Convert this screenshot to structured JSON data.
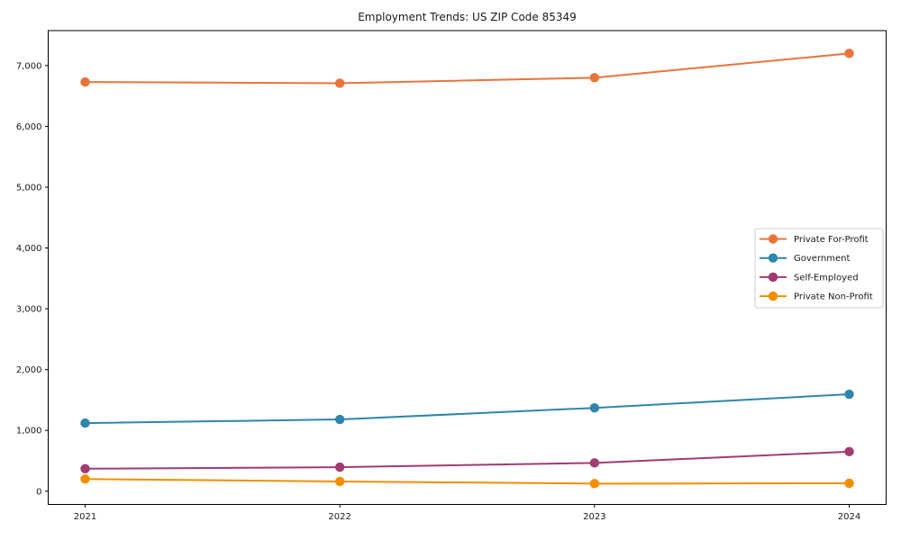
{
  "chart_data": {
    "type": "line",
    "title": "Employment Trends: US ZIP Code 85349",
    "xlabel": "",
    "ylabel": "",
    "x": [
      2021,
      2022,
      2023,
      2024
    ],
    "x_tick_labels": [
      "2021",
      "2022",
      "2023",
      "2024"
    ],
    "y_ticks": [
      0,
      1000,
      2000,
      3000,
      4000,
      5000,
      6000,
      7000
    ],
    "y_tick_labels": [
      "0",
      "1,000",
      "2,000",
      "3,000",
      "4,000",
      "5,000",
      "6,000",
      "7,000"
    ],
    "xlim": [
      2020.855,
      2024.145
    ],
    "ylim": [
      -218,
      7575
    ],
    "grid": false,
    "legend_position": "center-right",
    "frame_color": "#000000",
    "series": [
      {
        "name": "Private For-Profit",
        "color": "#E8743B",
        "values": [
          6730,
          6710,
          6800,
          7200
        ]
      },
      {
        "name": "Government",
        "color": "#2E86AB",
        "values": [
          1120,
          1180,
          1370,
          1595
        ]
      },
      {
        "name": "Self-Employed",
        "color": "#A23B72",
        "values": [
          370,
          395,
          465,
          650
        ]
      },
      {
        "name": "Private Non-Profit",
        "color": "#F18F01",
        "values": [
          200,
          160,
          125,
          130
        ]
      }
    ]
  }
}
